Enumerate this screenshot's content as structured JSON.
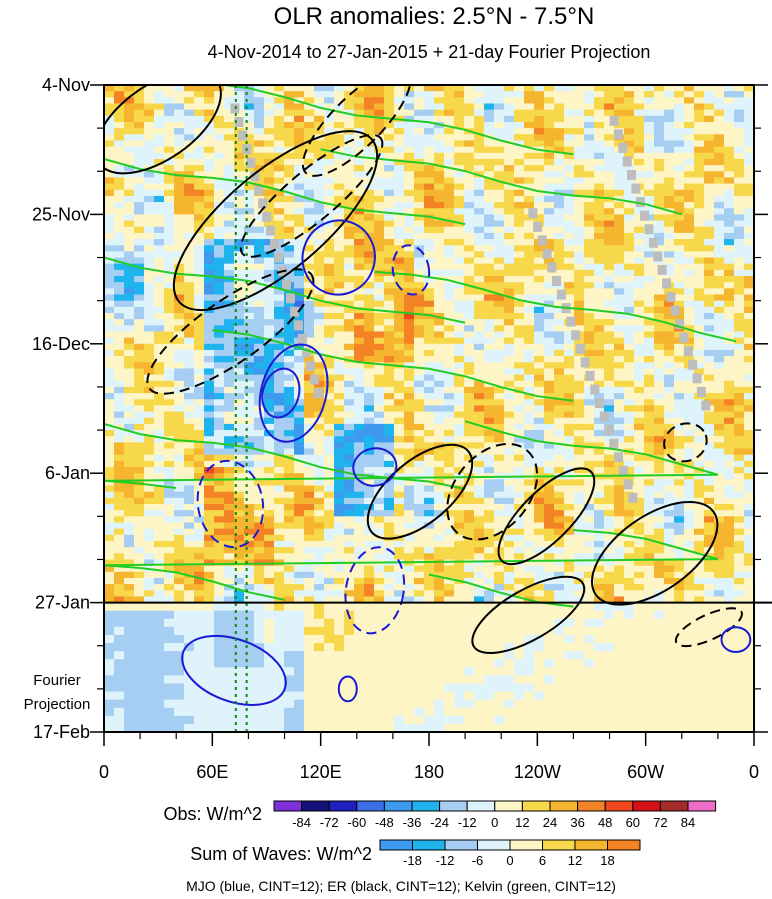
{
  "chart_data": {
    "type": "heatmap",
    "title": "OLR anomalies: 2.5°N - 7.5°N",
    "subtitle": "4-Nov-2014 to 27-Jan-2015 + 21-day Fourier Projection",
    "x_tick_labels": [
      "0",
      "60E",
      "120E",
      "180",
      "120W",
      "60W",
      "0"
    ],
    "x_tick_longitudes": [
      0,
      60,
      120,
      180,
      240,
      300,
      360
    ],
    "x_range": [
      0,
      360
    ],
    "y_tick_labels": [
      "4-Nov",
      "25-Nov",
      "16-Dec",
      "6-Jan",
      "27-Jan",
      "17-Feb"
    ],
    "y_tick_day_offsets": [
      0,
      21,
      42,
      63,
      84,
      105
    ],
    "y_range_days": [
      0,
      105
    ],
    "projection_start_day": 84,
    "fourier_label_line1": "Fourier",
    "fourier_label_line2": "Projection",
    "reference_lines_longitude": [
      73,
      79
    ],
    "obs_colorbar": {
      "label": "Obs: W/m^2",
      "levels": [
        -84,
        -72,
        -60,
        -48,
        -36,
        -24,
        -12,
        0,
        12,
        24,
        36,
        48,
        60,
        72,
        84
      ],
      "colors": [
        "#7d2fd8",
        "#12127a",
        "#1f1fc0",
        "#3c6ee8",
        "#3d9aee",
        "#1fb4ee",
        "#a5cef2",
        "#dff3fb",
        "#fdf5c5",
        "#f6d84a",
        "#f6b52f",
        "#f48325",
        "#f0461e",
        "#d51017",
        "#a52a2a",
        "#ee6cc8"
      ]
    },
    "waves_colorbar": {
      "label": "Sum of Waves: W/m^2",
      "levels": [
        -18,
        -12,
        -6,
        0,
        6,
        12,
        18
      ],
      "colors": [
        "#3d9aee",
        "#1fb4ee",
        "#a5cef2",
        "#dff3fb",
        "#fdf5c5",
        "#f6d84a",
        "#f6b52f",
        "#f48325"
      ]
    },
    "contour_legend": "MJO (blue, CINT=12); ER (black, CINT=12); Kelvin (green, CINT=12)"
  }
}
